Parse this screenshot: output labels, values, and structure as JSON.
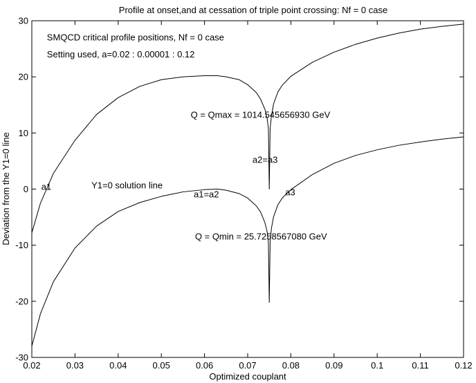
{
  "chart_data": {
    "type": "line",
    "title": "Profile at onset,and at cessation of triple point crossing: Nf = 0 case",
    "xlabel": "Optimized couplant",
    "ylabel": "Deviation from the Y1=0 line",
    "xlim": [
      0.02,
      0.12
    ],
    "ylim": [
      -30,
      30
    ],
    "xticks": [
      0.02,
      0.03,
      0.04,
      0.05,
      0.06,
      0.07,
      0.08,
      0.09,
      0.1,
      0.11,
      0.12
    ],
    "xtick_labels": [
      "0.02",
      "0.03",
      "0.04",
      "0.05",
      "0.06",
      "0.07",
      "0.08",
      "0.09",
      "0.1",
      "0.11",
      "0.12"
    ],
    "yticks": [
      -30,
      -20,
      -10,
      0,
      10,
      20,
      30
    ],
    "ytick_labels": [
      "-30",
      "-20",
      "-10",
      "0",
      "10",
      "20",
      "30"
    ],
    "grid": false,
    "series": [
      {
        "color": "#000000",
        "x": [
          0.02,
          0.022,
          0.025,
          0.03,
          0.035,
          0.04,
          0.045,
          0.05,
          0.055,
          0.06,
          0.063,
          0.065,
          0.068,
          0.07,
          0.072,
          0.073,
          0.074,
          0.0745,
          0.0748,
          0.075,
          0.0752,
          0.0755,
          0.076,
          0.077,
          0.078,
          0.08,
          0.085,
          0.09,
          0.095,
          0.1,
          0.105,
          0.11,
          0.115,
          0.12
        ],
        "y": [
          -7.8,
          -2.5,
          2.8,
          8.7,
          13.3,
          16.3,
          18.3,
          19.5,
          20.0,
          20.2,
          20.2,
          20.0,
          19.5,
          18.6,
          17.2,
          16.0,
          14.2,
          12.6,
          10.8,
          0.0,
          10.8,
          13.0,
          15.2,
          17.3,
          18.5,
          20.1,
          22.6,
          24.4,
          25.8,
          26.9,
          27.8,
          28.5,
          29.0,
          29.4
        ]
      },
      {
        "color": "#000000",
        "x": [
          0.02,
          0.022,
          0.025,
          0.03,
          0.035,
          0.04,
          0.045,
          0.05,
          0.055,
          0.06,
          0.063,
          0.065,
          0.068,
          0.07,
          0.072,
          0.073,
          0.074,
          0.0745,
          0.0748,
          0.075,
          0.0752,
          0.0755,
          0.076,
          0.077,
          0.078,
          0.08,
          0.085,
          0.09,
          0.095,
          0.1,
          0.105,
          0.11,
          0.115,
          0.12
        ],
        "y": [
          -28.0,
          -22.2,
          -16.5,
          -10.5,
          -6.6,
          -4.0,
          -2.4,
          -1.3,
          -0.5,
          -0.1,
          0.0,
          -0.2,
          -0.8,
          -1.6,
          -3.0,
          -4.1,
          -6.0,
          -7.6,
          -9.4,
          -20.2,
          -9.4,
          -7.0,
          -4.9,
          -2.8,
          -1.6,
          -0.1,
          2.6,
          4.6,
          6.0,
          7.0,
          7.8,
          8.4,
          8.9,
          9.3
        ]
      }
    ],
    "annotations": [
      {
        "id": "header-note",
        "text": "SMQCD critical profile positions, Nf = 0 case",
        "x": 0.0235,
        "y": 26.5
      },
      {
        "id": "setting-note",
        "text": "Setting used, a=0.02 : 0.00001 : 0.12",
        "x": 0.0235,
        "y": 23.5
      },
      {
        "id": "qmax-note",
        "text": "Q = Qmax = 1014.545656930 GeV",
        "x": 0.0568,
        "y": 12.7
      },
      {
        "id": "a2a3-note",
        "text": "a2=a3",
        "x": 0.0711,
        "y": 4.7
      },
      {
        "id": "a1-note",
        "text": "a1",
        "x": 0.0222,
        "y": -0.1
      },
      {
        "id": "y1-line-note",
        "text": "Y1=0 solution line",
        "x": 0.0338,
        "y": 0.1
      },
      {
        "id": "a1a2-note",
        "text": "a1=a2",
        "x": 0.0575,
        "y": -1.5
      },
      {
        "id": "a3-note",
        "text": "a3",
        "x": 0.0787,
        "y": -1.1
      },
      {
        "id": "qmin-note",
        "text": "Q = Qmin = 25.7258567080 GeV",
        "x": 0.0578,
        "y": -9.0
      }
    ]
  }
}
